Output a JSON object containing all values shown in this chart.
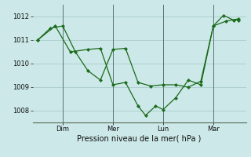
{
  "background_color": "#cce8e8",
  "grid_color": "#aacccc",
  "line_color": "#1a6b1a",
  "marker_color": "#1a6b1a",
  "xlabel": "Pression niveau de la mer( hPa )",
  "ylim": [
    1007.5,
    1012.5
  ],
  "yticks": [
    1008,
    1009,
    1010,
    1011,
    1012
  ],
  "xtick_labels": [
    "Dim",
    "Mer",
    "Lun",
    "Mar"
  ],
  "xtick_positions": [
    1,
    3,
    5,
    7
  ],
  "vline_positions": [
    1,
    3,
    5,
    7
  ],
  "series1_x": [
    0,
    0.5,
    1.0,
    1.5,
    2.0,
    2.5,
    3.0,
    3.5,
    4.0,
    4.5,
    5.0,
    5.5,
    6.0,
    6.5,
    7.0,
    7.5,
    8.0
  ],
  "series1_y": [
    1011.0,
    1011.5,
    1011.6,
    1010.5,
    1009.7,
    1009.3,
    1010.6,
    1010.65,
    1009.2,
    1009.05,
    1009.1,
    1009.1,
    1009.0,
    1009.25,
    1011.6,
    1011.8,
    1011.9
  ],
  "series2_x": [
    0,
    0.7,
    1.3,
    2.0,
    2.5,
    3.0,
    3.5,
    4.0,
    4.3,
    4.7,
    5.0,
    5.5,
    6.0,
    6.5,
    7.0,
    7.4,
    7.8,
    8.0
  ],
  "series2_y": [
    1011.0,
    1011.6,
    1010.5,
    1010.6,
    1010.65,
    1009.1,
    1009.2,
    1008.2,
    1007.8,
    1008.2,
    1008.05,
    1008.55,
    1009.3,
    1009.1,
    1011.6,
    1012.05,
    1011.85,
    1011.85
  ],
  "xlim": [
    -0.2,
    8.3
  ],
  "xlabel_fontsize": 7,
  "tick_fontsize": 6
}
